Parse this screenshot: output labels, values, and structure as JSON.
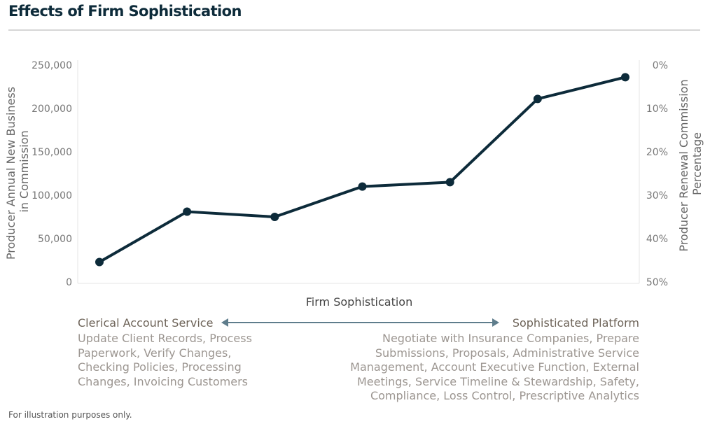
{
  "header": {
    "title": "Effects of Firm Sophistication"
  },
  "chart_data": {
    "type": "line",
    "title": "Effects of Firm Sophistication",
    "xlabel": "Firm Sophistication",
    "ylabel": "Producer Annual New Business in Commission",
    "ylabel_lines": [
      "Producer Annual New Business",
      "in Commission"
    ],
    "y2label": "Producer Renewal Commission Percentage",
    "y2label_lines": [
      "Producer Renewal Commission",
      "Percentage"
    ],
    "ylim": [
      0,
      250000
    ],
    "y2lim": [
      0.5,
      0.0
    ],
    "yticks": [
      0,
      50000,
      100000,
      150000,
      200000,
      250000
    ],
    "yticklabels": [
      "0",
      "50,000",
      "100,000",
      "150,000",
      "200,000",
      "250,000"
    ],
    "y2ticklabels": [
      "0%",
      "10%",
      "20%",
      "30%",
      "40%",
      "50%"
    ],
    "x": [
      1,
      2,
      3,
      4,
      5,
      6,
      7
    ],
    "series": [
      {
        "values": [
          23000,
          81000,
          75000,
          110000,
          115000,
          211000,
          236000
        ],
        "color": "#0d2b3a"
      }
    ],
    "grid": false
  },
  "spectrum": {
    "left_head": "Clerical Account Service",
    "left_lines": [
      "Update Client Records, Process",
      "Paperwork, Verify Changes,",
      "Checking Policies, Processing",
      "Changes, Invoicing Customers"
    ],
    "right_head": "Sophisticated Platform",
    "right_lines": [
      "Negotiate with Insurance Companies, Prepare",
      "Submissions, Proposals, Administrative Service",
      "Management, Account Executive Function, External",
      "Meetings, Service Timeline & Stewardship, Safety,",
      "Compliance, Loss Control, Prescriptive Analytics"
    ],
    "arrow_color": "#5f7d8c"
  },
  "footnote": "For illustration purposes only."
}
